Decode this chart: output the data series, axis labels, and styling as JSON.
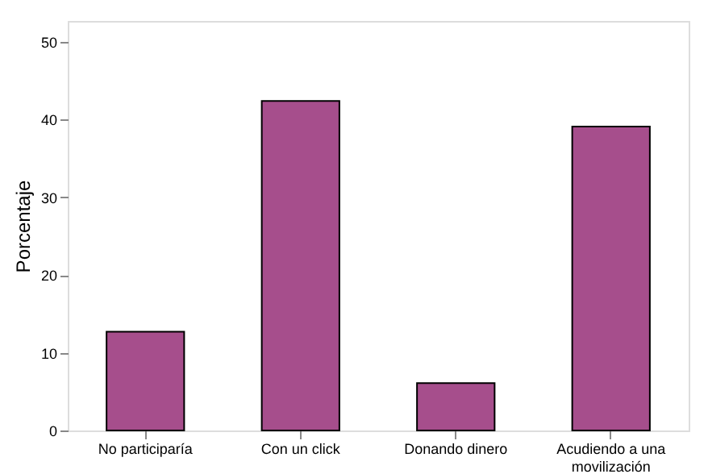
{
  "chart_data": {
    "type": "bar",
    "ylabel": "Porcentaje",
    "categories": [
      "No participaría",
      "Con un click",
      "Donando dinero",
      "Acudiendo a una\nmovilización"
    ],
    "values": [
      12.7,
      42.4,
      6.1,
      39.1
    ],
    "color": "#a64e8c",
    "ylim": [
      0,
      52.7
    ],
    "yticks": [
      0,
      10,
      20,
      30,
      40,
      50
    ],
    "grid": false
  }
}
